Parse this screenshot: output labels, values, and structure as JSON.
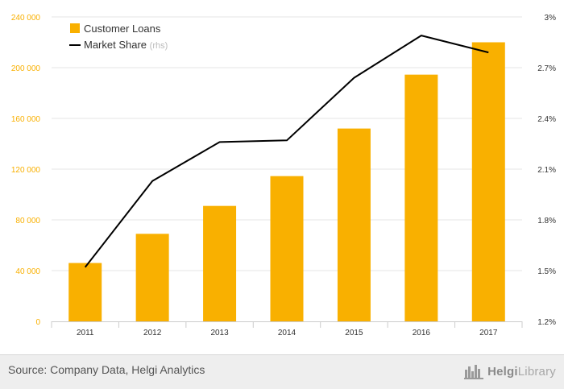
{
  "chart_data": {
    "type": "bar",
    "categories": [
      "2011",
      "2012",
      "2013",
      "2014",
      "2015",
      "2016",
      "2017"
    ],
    "series": [
      {
        "name": "Customer Loans",
        "type": "bar",
        "axis": "left",
        "values": [
          46000,
          69000,
          91000,
          114500,
          152000,
          194500,
          220000
        ]
      },
      {
        "name": "Market Share",
        "name_suffix": "(rhs)",
        "type": "line",
        "axis": "right",
        "values": [
          1.52,
          2.03,
          2.26,
          2.27,
          2.64,
          2.89,
          2.79
        ]
      }
    ],
    "y_left": {
      "ylim": [
        0,
        240000
      ],
      "ticks": [
        0,
        40000,
        80000,
        120000,
        160000,
        200000,
        240000
      ],
      "tick_labels": [
        "0",
        "40 000",
        "80 000",
        "120 000",
        "160 000",
        "200 000",
        "240 000"
      ]
    },
    "y_right": {
      "ylim": [
        1.2,
        3.0
      ],
      "ticks": [
        1.2,
        1.5,
        1.8,
        2.1,
        2.4,
        2.7,
        3.0
      ],
      "tick_labels": [
        "1.2%",
        "1.5%",
        "1.8%",
        "2.1%",
        "2.4%",
        "2.7%",
        "3%"
      ]
    },
    "grid": true,
    "legend_position": "top-left",
    "colors": {
      "bar": "#f9b000",
      "line": "#000000",
      "left_axis_text": "#f9b000",
      "right_axis_text": "#333333",
      "grid": "#e6e6e6"
    }
  },
  "footer": {
    "source": "Source: Company Data, Helgi Analytics",
    "brand_bold": "Helgi",
    "brand_light": "Library",
    "brand_icon": "helgi-library-logo-icon"
  }
}
